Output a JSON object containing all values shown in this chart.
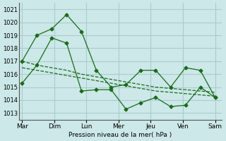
{
  "background_color": "#cce8e8",
  "grid_color": "#aacccc",
  "line_color": "#1a6b1a",
  "xlabel": "Pression niveau de la mer( hPa )",
  "days": [
    "Mar",
    "Dim",
    "Lun",
    "Mer",
    "Jeu",
    "Ven",
    "Sam"
  ],
  "ylim": [
    1012.5,
    1021.5
  ],
  "yticks": [
    1013,
    1014,
    1015,
    1016,
    1017,
    1018,
    1019,
    1020,
    1021
  ],
  "line_max": [
    1017.0,
    1019.0,
    1019.5,
    1020.6,
    1019.3,
    1016.3,
    1015.0,
    1015.2,
    1016.3,
    1016.3,
    1015.0,
    1016.5,
    1016.3,
    1014.2
  ],
  "line_min": [
    1015.3,
    1016.7,
    1018.8,
    1018.4,
    1014.7,
    1014.8,
    1014.8,
    1013.3,
    1013.8,
    1014.2,
    1013.5,
    1013.6,
    1015.0,
    1014.2
  ],
  "line_trend1": [
    1017.0,
    1016.7,
    1016.5,
    1016.3,
    1016.0,
    1015.8,
    1015.6,
    1015.4,
    1015.2,
    1015.0,
    1014.9,
    1014.8,
    1014.7,
    1014.6
  ],
  "line_trend2": [
    1016.5,
    1016.3,
    1016.1,
    1015.9,
    1015.7,
    1015.5,
    1015.3,
    1015.1,
    1014.9,
    1014.7,
    1014.6,
    1014.5,
    1014.4,
    1014.3
  ],
  "n_points": 14
}
